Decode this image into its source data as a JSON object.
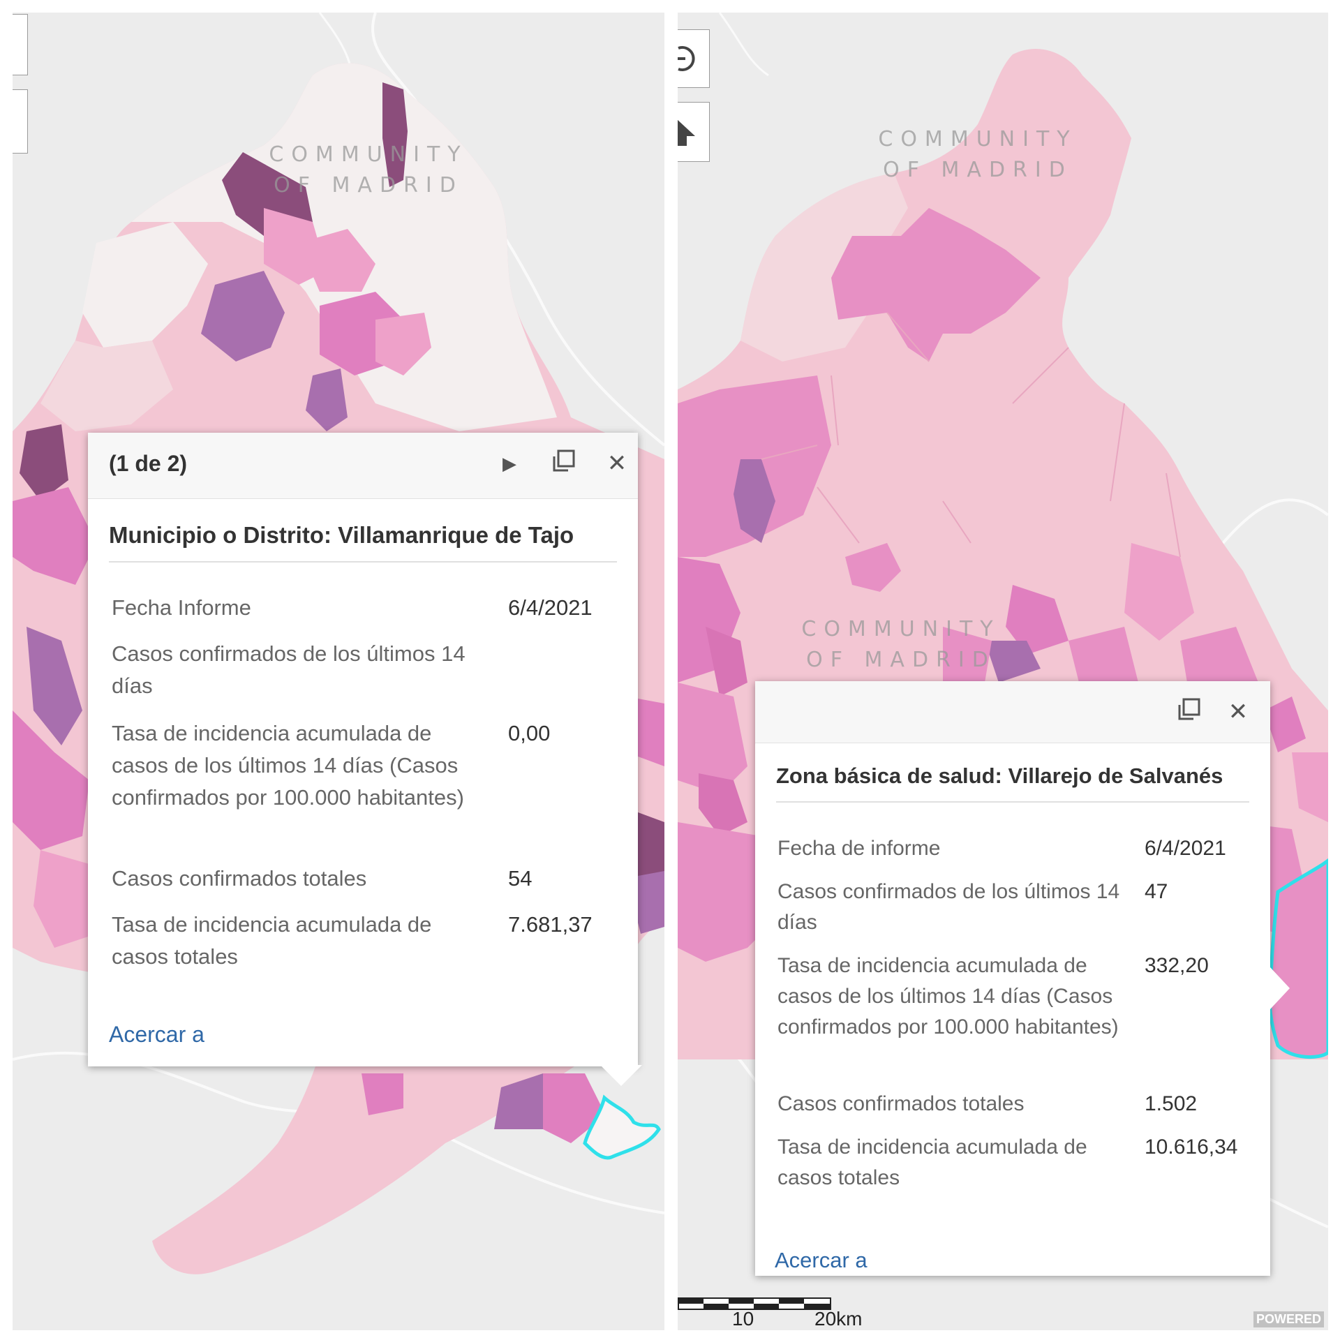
{
  "left": {
    "map_label": "COMMUNITY\nOF MADRID",
    "popup": {
      "count": "(1 de 2)",
      "next_icon": "play-triangle",
      "maximize_icon": "window-restore",
      "close_icon": "x",
      "title": "Municipio o Distrito: Villamanrique de Tajo",
      "rows": [
        {
          "label": "Fecha Informe",
          "value": "6/4/2021"
        },
        {
          "label": "Casos confirmados de los últimos 14 días",
          "value": ""
        },
        {
          "label": "Tasa de incidencia acumulada de casos de los últimos 14 días (Casos confirmados por 100.000 habitantes)",
          "value": "0,00"
        },
        {
          "label": "Casos confirmados totales",
          "value": "54"
        },
        {
          "label": "Tasa de incidencia acumulada de casos totales",
          "value": "7.681,37"
        }
      ],
      "zoom_label": "Acercar a"
    }
  },
  "right": {
    "map_label_top": "COMMUNITY\nOF MADRID",
    "map_label_mid": "COMMUNITY\nOF MADRID",
    "popup": {
      "maximize_icon": "window-restore",
      "close_icon": "x",
      "title": "Zona básica de salud: Villarejo de Salvanés",
      "rows": [
        {
          "label": "Fecha de informe",
          "value": "6/4/2021"
        },
        {
          "label": "Casos confirmados de los últimos 14 días",
          "value": "47"
        },
        {
          "label": "Tasa de incidencia acumulada de casos de los últimos 14 días (Casos confirmados por 100.000 habitantes)",
          "value": "332,20"
        },
        {
          "label": "Casos confirmados totales",
          "value": "1.502"
        },
        {
          "label": "Tasa de incidencia acumulada de casos totales",
          "value": "10.616,34"
        }
      ],
      "zoom_label": "Acercar a"
    },
    "scale": {
      "mid": "10",
      "end": "20km"
    },
    "attribution": "POWERED"
  },
  "colors": {
    "map_bg": "#ececec",
    "highlight": "#2fe0ea",
    "link": "#2f68a7",
    "choropleth": [
      "#f4efef",
      "#f3c6d3",
      "#eea1c9",
      "#e07fbf",
      "#a86fae",
      "#8b4d7b"
    ]
  }
}
